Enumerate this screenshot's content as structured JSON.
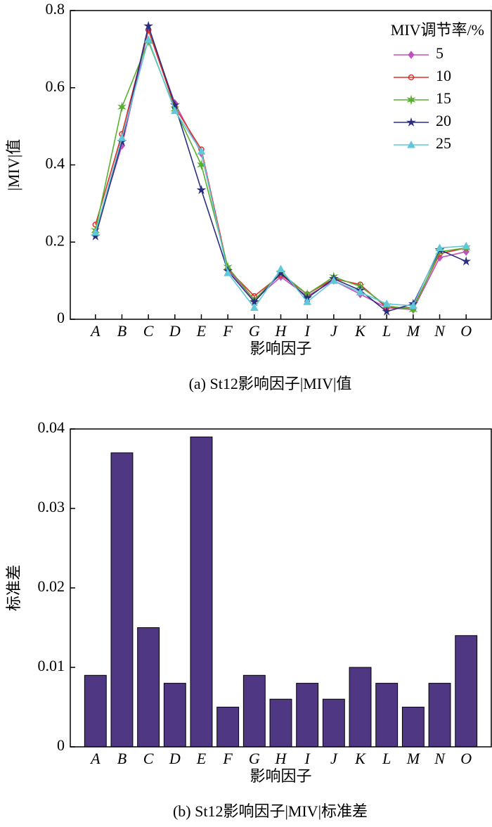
{
  "chart_data": [
    {
      "type": "line",
      "caption": "(a) St12影响因子|MIV|值",
      "xlabel": "影响因子",
      "ylabel": "|MIV|值",
      "legend_title": "MIV调节率/%",
      "legend_position": "upper-right",
      "categories": [
        "A",
        "B",
        "C",
        "D",
        "E",
        "F",
        "G",
        "H",
        "I",
        "J",
        "K",
        "L",
        "M",
        "N",
        "O"
      ],
      "ylim": [
        0,
        0.8
      ],
      "yticks": [
        0,
        0.2,
        0.4,
        0.6,
        0.8
      ],
      "series": [
        {
          "name": "5",
          "color": "#c050c0",
          "marker": "diamond",
          "values": [
            0.225,
            0.45,
            0.75,
            0.56,
            0.43,
            0.13,
            0.05,
            0.11,
            0.06,
            0.1,
            0.065,
            0.03,
            0.025,
            0.16,
            0.175
          ]
        },
        {
          "name": "10",
          "color": "#e0302a",
          "marker": "circle",
          "values": [
            0.245,
            0.48,
            0.75,
            0.55,
            0.44,
            0.13,
            0.06,
            0.115,
            0.065,
            0.105,
            0.09,
            0.03,
            0.03,
            0.17,
            0.185
          ]
        },
        {
          "name": "15",
          "color": "#58b030",
          "marker": "asterisk",
          "values": [
            0.23,
            0.55,
            0.72,
            0.545,
            0.4,
            0.135,
            0.05,
            0.12,
            0.065,
            0.11,
            0.085,
            0.035,
            0.025,
            0.175,
            0.185
          ]
        },
        {
          "name": "20",
          "color": "#2a2f80",
          "marker": "star",
          "values": [
            0.215,
            0.46,
            0.76,
            0.555,
            0.335,
            0.125,
            0.045,
            0.12,
            0.055,
            0.105,
            0.075,
            0.02,
            0.04,
            0.18,
            0.15
          ]
        },
        {
          "name": "25",
          "color": "#60c8d8",
          "marker": "triangle",
          "values": [
            0.225,
            0.47,
            0.725,
            0.54,
            0.435,
            0.12,
            0.03,
            0.13,
            0.045,
            0.1,
            0.07,
            0.04,
            0.035,
            0.185,
            0.19
          ]
        }
      ]
    },
    {
      "type": "bar",
      "caption": "(b) St12影响因子|MIV|标准差",
      "xlabel": "影响因子",
      "ylabel": "标准差",
      "color": "#4f3784",
      "categories": [
        "A",
        "B",
        "C",
        "D",
        "E",
        "F",
        "G",
        "H",
        "I",
        "J",
        "K",
        "L",
        "M",
        "N",
        "O"
      ],
      "values": [
        0.009,
        0.037,
        0.015,
        0.008,
        0.039,
        0.005,
        0.009,
        0.006,
        0.008,
        0.006,
        0.01,
        0.008,
        0.005,
        0.008,
        0.014
      ],
      "ylim": [
        0,
        0.04
      ],
      "yticks": [
        0,
        0.01,
        0.02,
        0.03,
        0.04
      ]
    }
  ]
}
